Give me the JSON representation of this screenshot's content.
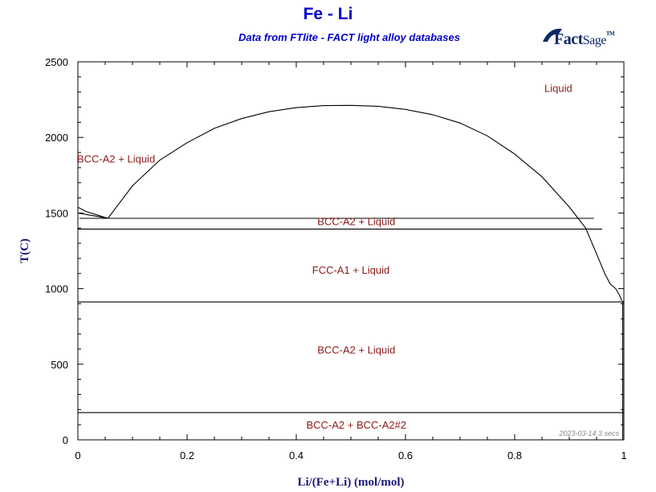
{
  "colors": {
    "title": "#0000cc",
    "phase_label": "#8b1a1a",
    "axis_label": "#1a1a7a",
    "line": "#000000",
    "logo": "#0a2a66"
  },
  "logo": {
    "text": "FactSage",
    "part1": "Fact",
    "part2": "Sage",
    "tm": "TM"
  },
  "chart_data": {
    "type": "line",
    "title": "Fe - Li",
    "subtitle": "Data from FTlite - FACT light alloy databases",
    "xlabel": "Li/(Fe+Li) (mol/mol)",
    "ylabel": "T(C)",
    "xlim": [
      0,
      1
    ],
    "ylim": [
      0,
      2500
    ],
    "xticks": [
      0,
      0.2,
      0.4,
      0.6,
      0.8,
      1
    ],
    "xtick_labels": [
      "0",
      "0.2",
      "0.4",
      "0.6",
      "0.8",
      "1"
    ],
    "yticks": [
      0,
      500,
      1000,
      1500,
      2000,
      2500
    ],
    "ytick_labels": [
      "0",
      "500",
      "1000",
      "1500",
      "2000",
      "2500"
    ],
    "grid": false,
    "footer": "2023-03-14  3 secs",
    "series": [
      {
        "x": [
          0.055,
          0.1,
          0.15,
          0.2,
          0.25,
          0.3,
          0.35,
          0.4,
          0.45,
          0.5,
          0.55,
          0.6,
          0.65,
          0.7,
          0.75,
          0.8,
          0.85,
          0.9,
          0.93,
          0.95,
          0.965,
          0.975,
          0.985,
          0.993,
          0.996
        ],
        "y": [
          1465,
          1680,
          1850,
          1965,
          2060,
          2125,
          2170,
          2197,
          2210,
          2212,
          2206,
          2185,
          2150,
          2095,
          2010,
          1890,
          1740,
          1540,
          1400,
          1230,
          1100,
          1030,
          1000,
          950,
          920
        ]
      },
      {
        "x": [
          0.0,
          0.015,
          0.055
        ],
        "y": [
          1538,
          1510,
          1465
        ]
      },
      {
        "x": [
          0.0,
          0.055
        ],
        "y": [
          1500,
          1465
        ]
      },
      {
        "x": [
          0.003,
          0.055,
          0.945
        ],
        "y": [
          1465,
          1465,
          1465
        ]
      },
      {
        "x": [
          0.0,
          0.96
        ],
        "y": [
          1394,
          1394
        ]
      },
      {
        "x": [
          0.0,
          1.0
        ],
        "y": [
          912,
          912
        ]
      },
      {
        "x": [
          0.0,
          1.0
        ],
        "y": [
          180,
          180
        ]
      },
      {
        "x": [
          0.998,
          0.998,
          0.998
        ],
        "y": [
          920,
          700,
          0
        ]
      }
    ],
    "labels": [
      {
        "text": "Liquid",
        "x": 0.88,
        "y": 2300
      },
      {
        "text": "BCC-A2 + Liquid",
        "x": 0.07,
        "y": 1835
      },
      {
        "text": "BCC-A2 + Liquid",
        "x": 0.51,
        "y": 1420
      },
      {
        "text": "FCC-A1 + Liquid",
        "x": 0.5,
        "y": 1100
      },
      {
        "text": "BCC-A2 + Liquid",
        "x": 0.51,
        "y": 570
      },
      {
        "text": "BCC-A2 + BCC-A2#2",
        "x": 0.51,
        "y": 75
      }
    ]
  }
}
